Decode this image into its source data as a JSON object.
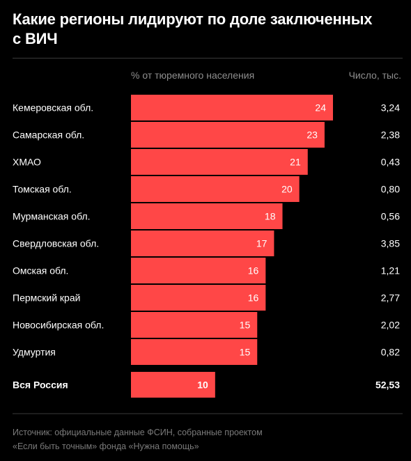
{
  "header": {
    "title_line1": "Какие регионы лидируют по доле заключенных",
    "title_line2": "с ВИЧ"
  },
  "columns": {
    "bar_header": "% от тюремного населения",
    "count_header": "Число, тыс."
  },
  "colors": {
    "bar": "#ff4747",
    "background": "#000000",
    "muted": "#8e8e8e"
  },
  "chart_data": {
    "type": "bar",
    "orientation": "horizontal",
    "title": "Какие регионы лидируют по доле заключенных с ВИЧ",
    "xlabel": "% от тюремного населения",
    "xlim": [
      0,
      24
    ],
    "categories": [
      "Кемеровская обл.",
      "Самарская обл.",
      "ХМАО",
      "Томская обл.",
      "Мурманская обл.",
      "Свердловская обл.",
      "Омская обл.",
      "Пермский край",
      "Новосибирская обл.",
      "Удмуртия"
    ],
    "values": [
      24,
      23,
      21,
      20,
      18,
      17,
      16,
      16,
      15,
      15
    ],
    "counts": [
      "3,24",
      "2,38",
      "0,43",
      "0,80",
      "0,56",
      "3,85",
      "1,21",
      "2,77",
      "2,02",
      "0,82"
    ],
    "total": {
      "label": "Вся Россия",
      "value": 10,
      "count": "52,53"
    }
  },
  "footer": {
    "source_line1": "Источник:  официальные данные ФСИН, собранные проектом",
    "source_line2": "«Если быть точным» фонда «Нужна помощь»"
  }
}
